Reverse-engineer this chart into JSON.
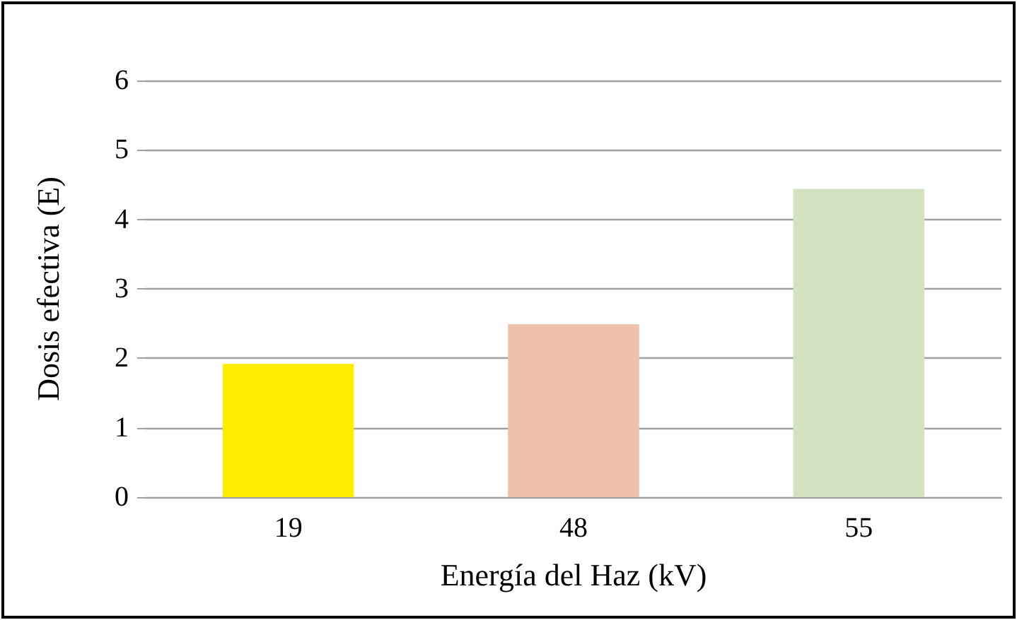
{
  "chart_data": {
    "type": "bar",
    "xlabel": "Energía del Haz (kV)",
    "ylabel": "Dosis efectiva (E)",
    "categories": [
      "19",
      "48",
      "55"
    ],
    "values": [
      1.92,
      2.49,
      4.44
    ],
    "colors": [
      "#ffec00",
      "#efc0aa",
      "#d4e2c1"
    ],
    "ylim": [
      0,
      6
    ],
    "yticks": [
      0,
      1,
      2,
      3,
      4,
      5,
      6
    ],
    "grid": "y"
  }
}
